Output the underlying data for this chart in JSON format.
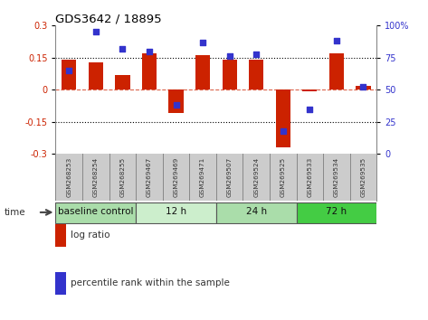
{
  "title": "GDS3642 / 18895",
  "samples": [
    "GSM268253",
    "GSM268254",
    "GSM268255",
    "GSM269467",
    "GSM269469",
    "GSM269471",
    "GSM269507",
    "GSM269524",
    "GSM269525",
    "GSM269533",
    "GSM269534",
    "GSM269535"
  ],
  "log_ratio": [
    0.14,
    0.13,
    0.07,
    0.17,
    -0.11,
    0.16,
    0.14,
    0.14,
    -0.27,
    -0.005,
    0.17,
    0.02
  ],
  "percentile_rank": [
    65,
    95,
    82,
    80,
    38,
    87,
    76,
    78,
    18,
    35,
    88,
    52
  ],
  "ylim_left": [
    -0.3,
    0.3
  ],
  "ylim_right": [
    0,
    100
  ],
  "yticks_left": [
    -0.3,
    -0.15,
    0,
    0.15,
    0.3
  ],
  "yticks_right": [
    0,
    25,
    50,
    75,
    100
  ],
  "ytick_right_labels": [
    "0",
    "25",
    "50",
    "75",
    "100%"
  ],
  "hlines_dotted": [
    -0.15,
    0.15
  ],
  "hline_red_dashed": 0,
  "bar_color": "#cc2200",
  "dot_color": "#3333cc",
  "bar_width": 0.55,
  "groups": [
    {
      "label": "baseline control",
      "start": 0,
      "end": 3,
      "color": "#aaddaa"
    },
    {
      "label": "12 h",
      "start": 3,
      "end": 6,
      "color": "#cceecc"
    },
    {
      "label": "24 h",
      "start": 6,
      "end": 9,
      "color": "#aaddaa"
    },
    {
      "label": "72 h",
      "start": 9,
      "end": 12,
      "color": "#44cc44"
    }
  ],
  "time_label": "time",
  "legend_bar_label": "log ratio",
  "legend_dot_label": "percentile rank within the sample",
  "background_color": "#ffffff",
  "label_bg_color": "#cccccc"
}
